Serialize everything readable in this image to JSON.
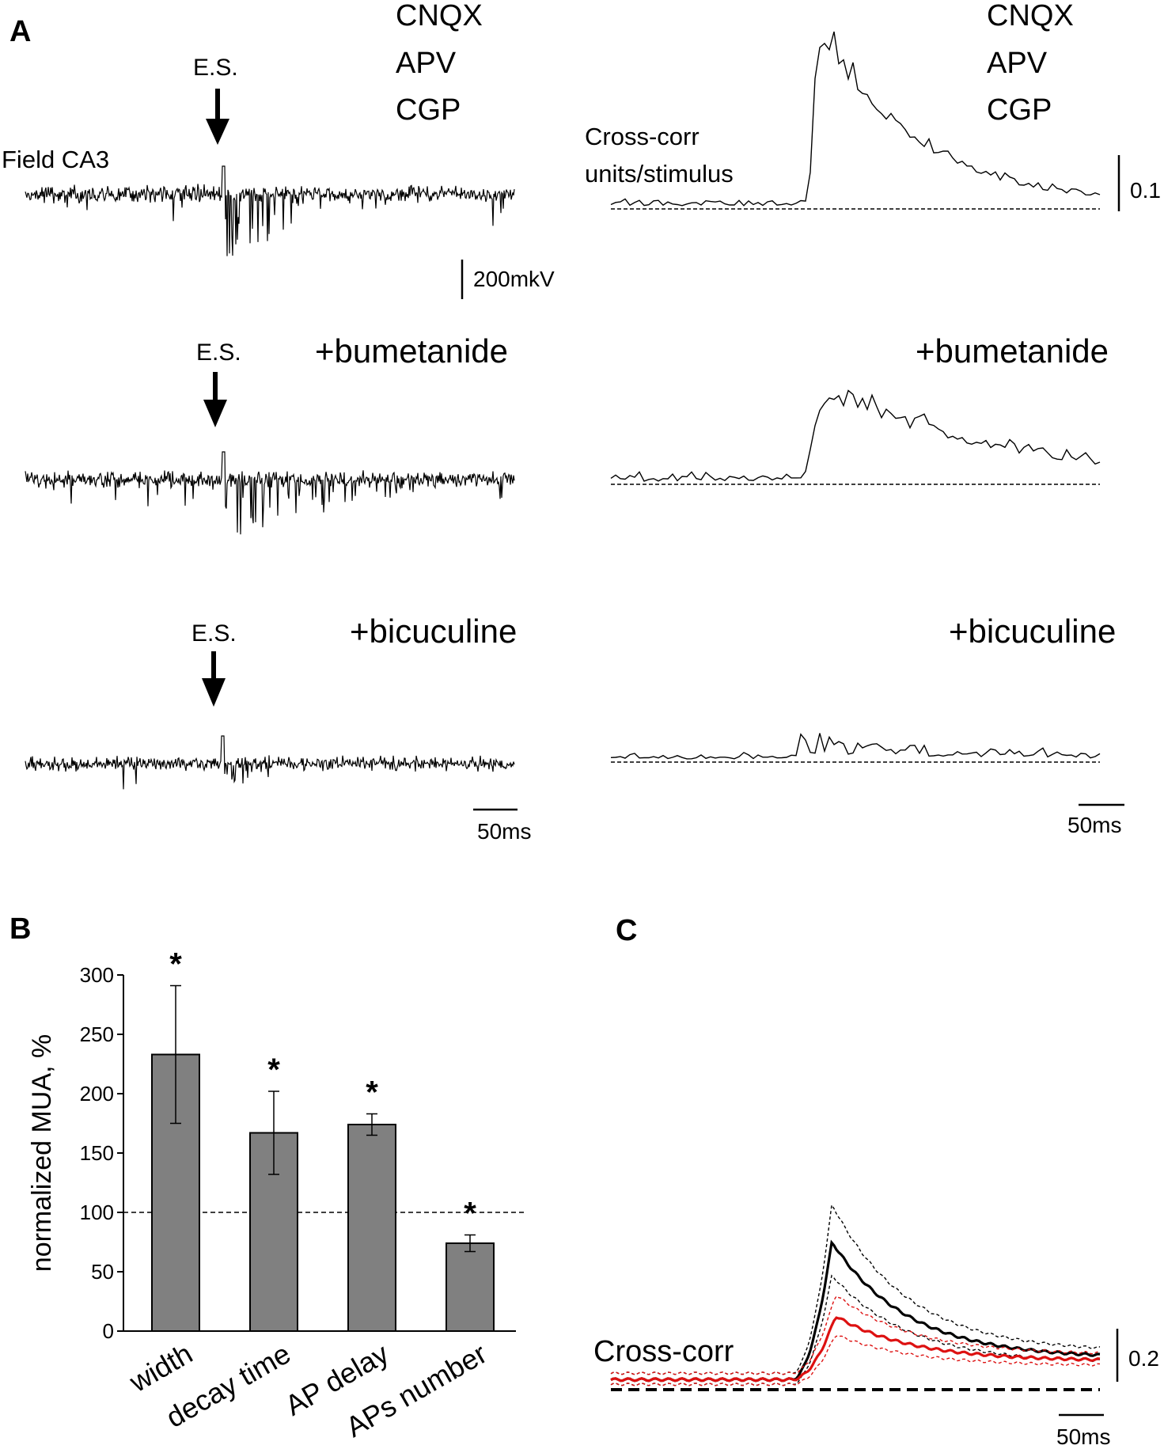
{
  "panels": {
    "a": {
      "letter": "A",
      "field_label": "Field CA3",
      "stim_label": "E.S.",
      "drug_block": [
        "CNQX",
        "APV",
        "CGP"
      ],
      "conditions": [
        "+bumetanide",
        "+bicuculine"
      ],
      "crosscorr_label": [
        "Cross-corr",
        "units/stimulus"
      ],
      "scalebars": {
        "voltage": "200mkV",
        "time_left": "50ms",
        "time_right": "50ms",
        "crosscorr": "0.1"
      }
    },
    "b": {
      "letter": "B"
    },
    "c": {
      "letter": "C",
      "trace_label": "Cross-corr",
      "scalebars": {
        "crosscorr": "0.2",
        "time": "50ms"
      }
    }
  },
  "chart_data": [
    {
      "type": "bar",
      "panel": "B",
      "categories": [
        "width",
        "decay time",
        "AP delay",
        "APs number"
      ],
      "values": [
        233,
        167,
        174,
        74
      ],
      "errors": [
        58,
        35,
        9,
        7
      ],
      "significance": [
        "*",
        "*",
        "*",
        "*"
      ],
      "reference_line": 100,
      "ylabel": "normalized MUA, %",
      "ylim": [
        0,
        300
      ],
      "yticks": [
        0,
        50,
        100,
        150,
        200,
        250,
        300
      ],
      "colors": {
        "bar": "#808080",
        "reference": "#000000"
      }
    },
    {
      "type": "line",
      "panel": "C",
      "ylabel": "Cross-corr",
      "series": [
        {
          "color": "#000000",
          "style": "mean with dashed confidence band",
          "baseline": 0.02,
          "peak": 0.54,
          "peak_time_ms": 45,
          "end_value": 0.1
        },
        {
          "color": "#dd1111",
          "style": "mean with dashed confidence band",
          "baseline": 0.02,
          "peak": 0.26,
          "peak_time_ms": 49,
          "end_value": 0.09
        }
      ]
    }
  ]
}
